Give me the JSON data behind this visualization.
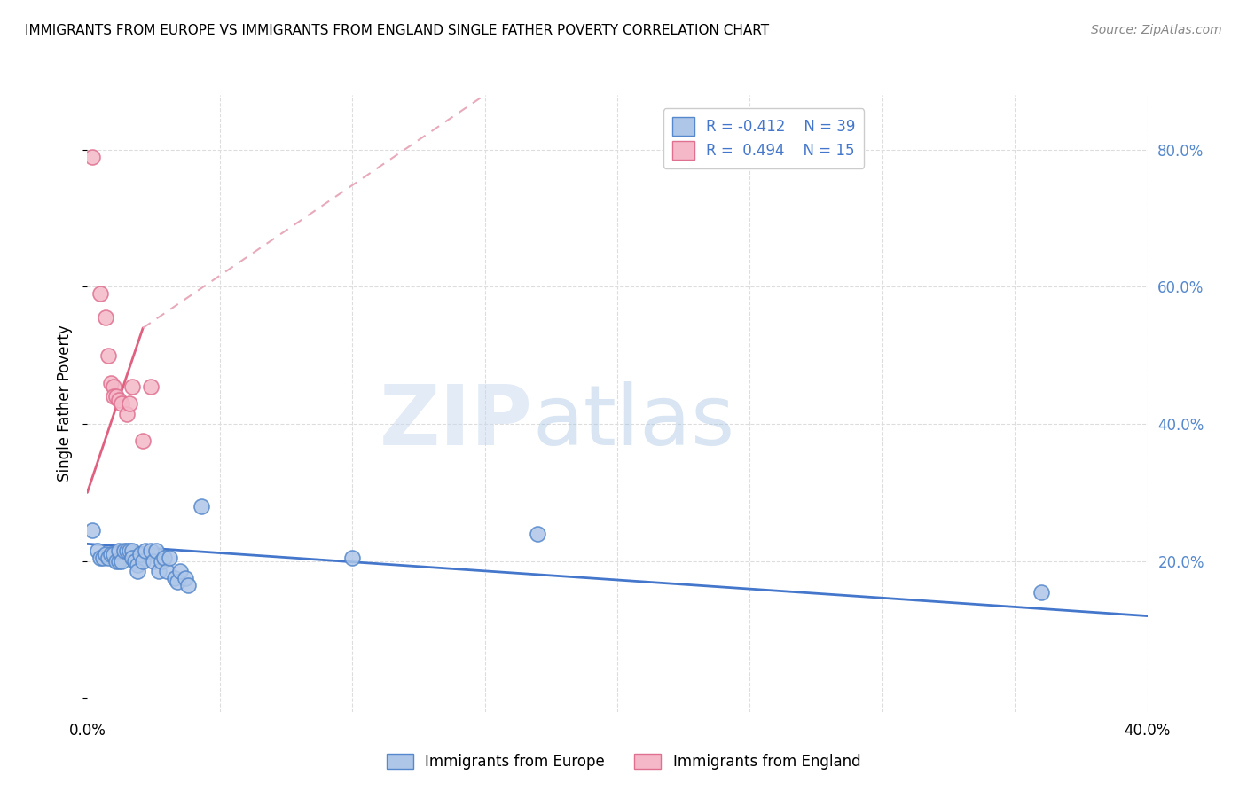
{
  "title": "IMMIGRANTS FROM EUROPE VS IMMIGRANTS FROM ENGLAND SINGLE FATHER POVERTY CORRELATION CHART",
  "source": "Source: ZipAtlas.com",
  "ylabel": "Single Father Poverty",
  "yticks": [
    0.0,
    0.2,
    0.4,
    0.6,
    0.8
  ],
  "ytick_labels": [
    "",
    "20.0%",
    "40.0%",
    "60.0%",
    "80.0%"
  ],
  "xlim": [
    0.0,
    0.4
  ],
  "ylim": [
    -0.02,
    0.88
  ],
  "watermark_zip": "ZIP",
  "watermark_atlas": "atlas",
  "legend_blue_r": "R = -0.412",
  "legend_blue_n": "N = 39",
  "legend_pink_r": "R =  0.494",
  "legend_pink_n": "N = 15",
  "blue_fill": "#aec6e8",
  "blue_edge": "#5588cc",
  "pink_fill": "#f4b8c8",
  "pink_edge": "#e07090",
  "blue_line_color": "#4477cc",
  "pink_line_color": "#e06080",
  "pink_dash_color": "#e8aabb",
  "grid_color": "#dddddd",
  "blue_scatter": [
    [
      0.002,
      0.245
    ],
    [
      0.004,
      0.215
    ],
    [
      0.005,
      0.205
    ],
    [
      0.006,
      0.205
    ],
    [
      0.007,
      0.21
    ],
    [
      0.008,
      0.205
    ],
    [
      0.009,
      0.21
    ],
    [
      0.01,
      0.21
    ],
    [
      0.011,
      0.2
    ],
    [
      0.012,
      0.2
    ],
    [
      0.012,
      0.215
    ],
    [
      0.013,
      0.2
    ],
    [
      0.014,
      0.215
    ],
    [
      0.015,
      0.215
    ],
    [
      0.016,
      0.215
    ],
    [
      0.017,
      0.215
    ],
    [
      0.017,
      0.205
    ],
    [
      0.018,
      0.2
    ],
    [
      0.019,
      0.195
    ],
    [
      0.019,
      0.185
    ],
    [
      0.02,
      0.21
    ],
    [
      0.021,
      0.2
    ],
    [
      0.022,
      0.215
    ],
    [
      0.024,
      0.215
    ],
    [
      0.025,
      0.2
    ],
    [
      0.026,
      0.215
    ],
    [
      0.027,
      0.185
    ],
    [
      0.028,
      0.2
    ],
    [
      0.029,
      0.205
    ],
    [
      0.03,
      0.185
    ],
    [
      0.031,
      0.205
    ],
    [
      0.033,
      0.175
    ],
    [
      0.034,
      0.17
    ],
    [
      0.035,
      0.185
    ],
    [
      0.037,
      0.175
    ],
    [
      0.038,
      0.165
    ],
    [
      0.043,
      0.28
    ],
    [
      0.1,
      0.205
    ],
    [
      0.17,
      0.24
    ]
  ],
  "blue_scatter_extra": [
    [
      0.36,
      0.155
    ]
  ],
  "pink_scatter": [
    [
      0.002,
      0.79
    ],
    [
      0.005,
      0.59
    ],
    [
      0.007,
      0.555
    ],
    [
      0.008,
      0.5
    ],
    [
      0.009,
      0.46
    ],
    [
      0.01,
      0.455
    ],
    [
      0.01,
      0.44
    ],
    [
      0.011,
      0.44
    ],
    [
      0.012,
      0.435
    ],
    [
      0.013,
      0.43
    ],
    [
      0.015,
      0.415
    ],
    [
      0.016,
      0.43
    ],
    [
      0.017,
      0.455
    ],
    [
      0.021,
      0.375
    ],
    [
      0.024,
      0.455
    ]
  ],
  "blue_trendline": [
    [
      0.0,
      0.225
    ],
    [
      0.4,
      0.12
    ]
  ],
  "pink_trendline_solid": [
    [
      0.0,
      0.3
    ],
    [
      0.021,
      0.54
    ]
  ],
  "pink_trendline_dash": [
    [
      0.021,
      0.54
    ],
    [
      0.15,
      0.88
    ]
  ]
}
